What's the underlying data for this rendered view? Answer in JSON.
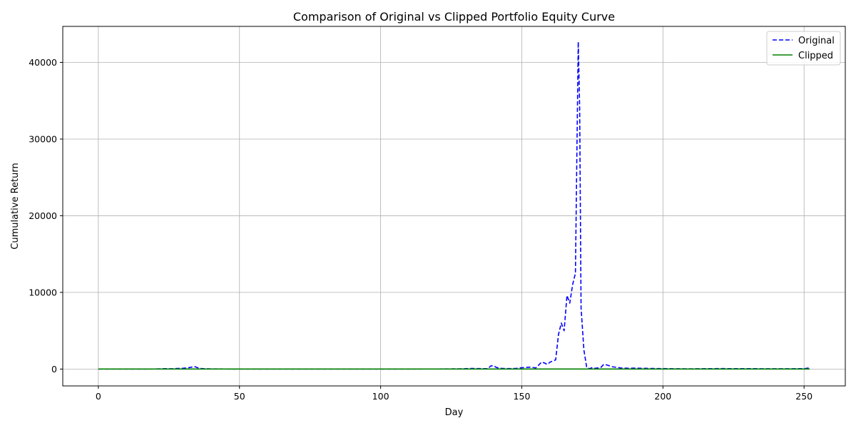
{
  "chart_data": {
    "type": "line",
    "title": "Comparison of Original vs Clipped Portfolio Equity Curve",
    "xlabel": "Day",
    "ylabel": "Cumulative Return",
    "xlim": [
      -12.6,
      264.6
    ],
    "ylim": [
      -2200,
      44700
    ],
    "xticks": [
      0,
      50,
      100,
      150,
      200,
      250
    ],
    "yticks": [
      0,
      10000,
      20000,
      30000,
      40000
    ],
    "grid": true,
    "legend_position": "top-right",
    "series": [
      {
        "name": "Original",
        "color": "#0000ff",
        "style": "dashed",
        "points": [
          [
            0,
            1
          ],
          [
            5,
            2
          ],
          [
            10,
            3
          ],
          [
            15,
            5
          ],
          [
            20,
            10
          ],
          [
            22,
            30
          ],
          [
            24,
            50
          ],
          [
            26,
            40
          ],
          [
            28,
            80
          ],
          [
            30,
            100
          ],
          [
            32,
            180
          ],
          [
            33,
            250
          ],
          [
            34,
            330
          ],
          [
            35,
            200
          ],
          [
            36,
            80
          ],
          [
            38,
            40
          ],
          [
            40,
            20
          ],
          [
            45,
            10
          ],
          [
            50,
            5
          ],
          [
            60,
            3
          ],
          [
            80,
            2
          ],
          [
            100,
            5
          ],
          [
            120,
            10
          ],
          [
            128,
            30
          ],
          [
            130,
            50
          ],
          [
            132,
            80
          ],
          [
            135,
            60
          ],
          [
            138,
            50
          ],
          [
            139,
            400
          ],
          [
            140,
            450
          ],
          [
            141,
            200
          ],
          [
            143,
            80
          ],
          [
            145,
            60
          ],
          [
            148,
            80
          ],
          [
            149,
            150
          ],
          [
            151,
            200
          ],
          [
            153,
            250
          ],
          [
            155,
            150
          ],
          [
            157,
            900
          ],
          [
            158,
            800
          ],
          [
            159,
            600
          ],
          [
            160,
            900
          ],
          [
            162,
            1200
          ],
          [
            163,
            4500
          ],
          [
            164,
            6000
          ],
          [
            165,
            5000
          ],
          [
            166,
            9600
          ],
          [
            167,
            8600
          ],
          [
            168,
            11000
          ],
          [
            169,
            12500
          ],
          [
            170,
            42700
          ],
          [
            170.5,
            34000
          ],
          [
            171,
            8000
          ],
          [
            172,
            2500
          ],
          [
            173,
            200
          ],
          [
            174,
            50
          ],
          [
            175,
            200
          ],
          [
            176,
            100
          ],
          [
            178,
            200
          ],
          [
            179,
            600
          ],
          [
            180,
            550
          ],
          [
            182,
            300
          ],
          [
            185,
            150
          ],
          [
            188,
            100
          ],
          [
            190,
            120
          ],
          [
            195,
            80
          ],
          [
            200,
            60
          ],
          [
            205,
            40
          ],
          [
            210,
            30
          ],
          [
            215,
            50
          ],
          [
            220,
            60
          ],
          [
            230,
            50
          ],
          [
            240,
            40
          ],
          [
            250,
            50
          ],
          [
            251,
            100
          ],
          [
            252,
            180
          ]
        ]
      },
      {
        "name": "Clipped",
        "color": "#008000",
        "style": "solid",
        "points": [
          [
            0,
            1
          ],
          [
            50,
            1.1
          ],
          [
            100,
            1.2
          ],
          [
            150,
            1.3
          ],
          [
            200,
            1.4
          ],
          [
            252,
            1.5
          ]
        ]
      }
    ]
  }
}
